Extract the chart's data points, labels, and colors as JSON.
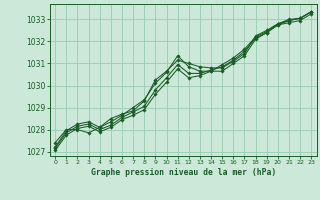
{
  "bg_color": "#cce8d8",
  "grid_color": "#99ccb0",
  "line_color": "#1a5c28",
  "title": "Graphe pression niveau de la mer (hPa)",
  "xlim": [
    -0.5,
    23.5
  ],
  "ylim": [
    1026.8,
    1033.7
  ],
  "yticks": [
    1027,
    1028,
    1029,
    1030,
    1031,
    1032,
    1033
  ],
  "xticks": [
    0,
    1,
    2,
    3,
    4,
    5,
    6,
    7,
    8,
    9,
    10,
    11,
    12,
    13,
    14,
    15,
    16,
    17,
    18,
    19,
    20,
    21,
    22,
    23
  ],
  "series": [
    [
      1027.4,
      1028.0,
      1028.0,
      1027.85,
      1028.1,
      1028.5,
      1028.7,
      1028.85,
      1029.3,
      1030.25,
      1030.65,
      1031.15,
      1031.0,
      1030.85,
      1030.8,
      1030.8,
      1031.1,
      1031.45,
      1032.25,
      1032.5,
      1032.8,
      1033.0,
      1033.05,
      1033.35
    ],
    [
      1027.2,
      1027.95,
      1028.25,
      1028.35,
      1028.1,
      1028.35,
      1028.65,
      1029.0,
      1029.35,
      1030.1,
      1030.6,
      1031.35,
      1030.85,
      1030.65,
      1030.65,
      1030.65,
      1031.0,
      1031.35,
      1032.1,
      1032.4,
      1032.75,
      1032.85,
      1032.95,
      1033.25
    ],
    [
      1027.15,
      1027.85,
      1028.15,
      1028.25,
      1028.0,
      1028.2,
      1028.55,
      1028.8,
      1029.05,
      1029.8,
      1030.35,
      1030.95,
      1030.55,
      1030.55,
      1030.7,
      1030.85,
      1031.15,
      1031.55,
      1032.15,
      1032.4,
      1032.75,
      1032.95,
      1033.05,
      1033.35
    ],
    [
      1027.05,
      1027.75,
      1028.05,
      1028.15,
      1027.9,
      1028.1,
      1028.45,
      1028.65,
      1028.9,
      1029.6,
      1030.15,
      1030.75,
      1030.35,
      1030.45,
      1030.65,
      1030.95,
      1031.25,
      1031.65,
      1032.2,
      1032.45,
      1032.8,
      1032.95,
      1033.05,
      1033.35
    ]
  ]
}
